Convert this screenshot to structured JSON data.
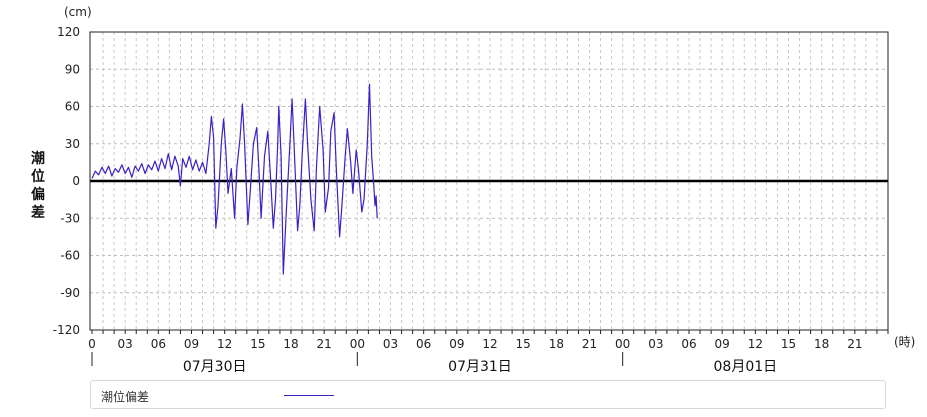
{
  "chart_data": {
    "type": "line",
    "ylabel": "潮位偏差",
    "y_unit": "(cm)",
    "x_unit": "(時)",
    "ylim": [
      -120,
      120
    ],
    "y_ticks": [
      120,
      90,
      60,
      30,
      0,
      -30,
      -60,
      -90,
      -120
    ],
    "x_tick_labels": [
      "0",
      "03",
      "06",
      "09",
      "12",
      "15",
      "18",
      "21",
      "00",
      "03",
      "06",
      "09",
      "12",
      "15",
      "18",
      "21",
      "00",
      "03",
      "06",
      "09",
      "12",
      "15",
      "18",
      "21"
    ],
    "x_tick_hours": [
      0,
      3,
      6,
      9,
      12,
      15,
      18,
      21,
      24,
      27,
      30,
      33,
      36,
      39,
      42,
      45,
      48,
      51,
      54,
      57,
      60,
      63,
      66,
      69
    ],
    "x_range_hours": [
      0,
      72
    ],
    "dates": [
      {
        "label": "07月30日",
        "start_hour": 0
      },
      {
        "label": "07月31日",
        "start_hour": 24
      },
      {
        "label": "08月01日",
        "start_hour": 48
      }
    ],
    "grid": true,
    "zero_line": true,
    "legend_position": "bottom",
    "series": [
      {
        "name": "潮位偏差",
        "color": "#3f1fc6",
        "points": [
          [
            0,
            2
          ],
          [
            0.3,
            8
          ],
          [
            0.6,
            5
          ],
          [
            0.9,
            11
          ],
          [
            1.2,
            6
          ],
          [
            1.5,
            12
          ],
          [
            1.8,
            4
          ],
          [
            2.1,
            10
          ],
          [
            2.4,
            7
          ],
          [
            2.7,
            13
          ],
          [
            3.0,
            6
          ],
          [
            3.3,
            11
          ],
          [
            3.6,
            3
          ],
          [
            3.9,
            12
          ],
          [
            4.2,
            8
          ],
          [
            4.5,
            14
          ],
          [
            4.8,
            6
          ],
          [
            5.1,
            13
          ],
          [
            5.4,
            9
          ],
          [
            5.7,
            16
          ],
          [
            6.0,
            8
          ],
          [
            6.3,
            18
          ],
          [
            6.6,
            10
          ],
          [
            6.9,
            22
          ],
          [
            7.2,
            9
          ],
          [
            7.5,
            20
          ],
          [
            7.8,
            12
          ],
          [
            8.0,
            -4
          ],
          [
            8.2,
            18
          ],
          [
            8.5,
            11
          ],
          [
            8.8,
            20
          ],
          [
            9.1,
            9
          ],
          [
            9.4,
            17
          ],
          [
            9.7,
            8
          ],
          [
            10.0,
            15
          ],
          [
            10.3,
            6
          ],
          [
            10.6,
            30
          ],
          [
            10.8,
            52
          ],
          [
            11.0,
            35
          ],
          [
            11.2,
            -38
          ],
          [
            11.4,
            -20
          ],
          [
            11.7,
            30
          ],
          [
            11.9,
            50
          ],
          [
            12.1,
            25
          ],
          [
            12.3,
            -10
          ],
          [
            12.6,
            10
          ],
          [
            12.9,
            -30
          ],
          [
            13.1,
            10
          ],
          [
            13.4,
            35
          ],
          [
            13.6,
            62
          ],
          [
            13.8,
            30
          ],
          [
            14.1,
            -35
          ],
          [
            14.3,
            -10
          ],
          [
            14.6,
            30
          ],
          [
            14.9,
            43
          ],
          [
            15.1,
            10
          ],
          [
            15.3,
            -30
          ],
          [
            15.6,
            20
          ],
          [
            15.9,
            40
          ],
          [
            16.2,
            -5
          ],
          [
            16.4,
            -38
          ],
          [
            16.6,
            -15
          ],
          [
            16.8,
            30
          ],
          [
            16.9,
            60
          ],
          [
            17.1,
            20
          ],
          [
            17.3,
            -75
          ],
          [
            17.6,
            -20
          ],
          [
            17.9,
            30
          ],
          [
            18.1,
            66
          ],
          [
            18.3,
            25
          ],
          [
            18.6,
            -40
          ],
          [
            18.8,
            -20
          ],
          [
            19.0,
            20
          ],
          [
            19.3,
            66
          ],
          [
            19.5,
            30
          ],
          [
            19.8,
            -15
          ],
          [
            20.1,
            -40
          ],
          [
            20.3,
            10
          ],
          [
            20.6,
            60
          ],
          [
            20.9,
            25
          ],
          [
            21.1,
            -25
          ],
          [
            21.4,
            -5
          ],
          [
            21.6,
            40
          ],
          [
            21.9,
            55
          ],
          [
            22.1,
            10
          ],
          [
            22.4,
            -45
          ],
          [
            22.6,
            -20
          ],
          [
            22.9,
            20
          ],
          [
            23.1,
            42
          ],
          [
            23.4,
            15
          ],
          [
            23.6,
            -10
          ],
          [
            23.9,
            25
          ],
          [
            24.1,
            10
          ],
          [
            24.4,
            -25
          ],
          [
            24.6,
            -15
          ],
          [
            24.9,
            30
          ],
          [
            25.1,
            78
          ],
          [
            25.3,
            20
          ],
          [
            25.5,
            -5
          ],
          [
            25.6,
            -20
          ],
          [
            25.7,
            -12
          ],
          [
            25.8,
            -30
          ]
        ]
      }
    ]
  },
  "legend": {
    "label": "潮位偏差"
  }
}
